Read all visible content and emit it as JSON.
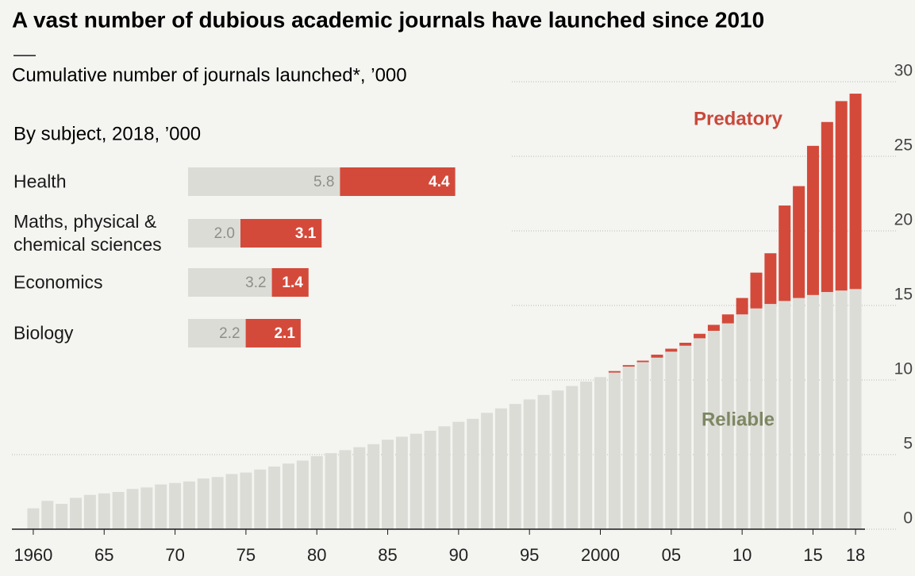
{
  "chart_data": [
    {
      "type": "bar",
      "stacked": true,
      "title": "A vast number of dubious academic journals have launched since 2010",
      "subtitle": "Cumulative number of journals launched*, ’000",
      "x": [
        1960,
        1961,
        1962,
        1963,
        1964,
        1965,
        1966,
        1967,
        1968,
        1969,
        1970,
        1971,
        1972,
        1973,
        1974,
        1975,
        1976,
        1977,
        1978,
        1979,
        1980,
        1981,
        1982,
        1983,
        1984,
        1985,
        1986,
        1987,
        1988,
        1989,
        1990,
        1991,
        1992,
        1993,
        1994,
        1995,
        1996,
        1997,
        1998,
        1999,
        2000,
        2001,
        2002,
        2003,
        2004,
        2005,
        2006,
        2007,
        2008,
        2009,
        2010,
        2011,
        2012,
        2013,
        2014,
        2015,
        2016,
        2017,
        2018
      ],
      "xticks": [
        1960,
        {
          "value": 1965,
          "label": "65"
        },
        {
          "value": 1970,
          "label": "70"
        },
        {
          "value": 1975,
          "label": "75"
        },
        {
          "value": 1980,
          "label": "80"
        },
        {
          "value": 1985,
          "label": "85"
        },
        {
          "value": 1990,
          "label": "90"
        },
        {
          "value": 1995,
          "label": "95"
        },
        2000,
        {
          "value": 2005,
          "label": "05"
        },
        {
          "value": 2010,
          "label": "10"
        },
        {
          "value": 2015,
          "label": "15"
        },
        {
          "value": 2018,
          "label": "18"
        }
      ],
      "ylim": [
        0,
        30
      ],
      "yticks": [
        0,
        5,
        10,
        15,
        20,
        25,
        30
      ],
      "grid": true,
      "series": [
        {
          "name": "Reliable",
          "color": "#dcdcd7",
          "values": [
            1.4,
            1.9,
            1.7,
            2.1,
            2.3,
            2.4,
            2.5,
            2.7,
            2.8,
            3.0,
            3.1,
            3.2,
            3.4,
            3.5,
            3.7,
            3.8,
            4.0,
            4.2,
            4.4,
            4.6,
            4.9,
            5.1,
            5.3,
            5.5,
            5.7,
            6.0,
            6.2,
            6.4,
            6.6,
            6.9,
            7.2,
            7.4,
            7.8,
            8.1,
            8.4,
            8.7,
            9.0,
            9.3,
            9.6,
            9.9,
            10.2,
            10.5,
            10.9,
            11.2,
            11.5,
            11.9,
            12.3,
            12.8,
            13.3,
            13.8,
            14.4,
            14.8,
            15.1,
            15.3,
            15.5,
            15.7,
            15.9,
            16.0,
            16.1
          ]
        },
        {
          "name": "Predatory",
          "color": "#d34a3b",
          "values": [
            0,
            0,
            0,
            0,
            0,
            0,
            0,
            0,
            0,
            0,
            0,
            0,
            0,
            0,
            0,
            0,
            0,
            0,
            0,
            0,
            0,
            0,
            0,
            0,
            0,
            0,
            0,
            0,
            0,
            0,
            0,
            0,
            0,
            0,
            0,
            0,
            0,
            0,
            0,
            0,
            0,
            0.1,
            0.1,
            0.1,
            0.2,
            0.2,
            0.2,
            0.3,
            0.4,
            0.6,
            1.1,
            2.4,
            3.4,
            6.4,
            7.5,
            10.0,
            11.4,
            12.7,
            13.1
          ]
        }
      ]
    },
    {
      "type": "bar",
      "orientation": "horizontal",
      "stacked": true,
      "subtitle": "By subject, 2018, ’000",
      "categories": [
        "Health",
        "Maths, physical & chemical sciences",
        "Economics",
        "Biology"
      ],
      "series": [
        {
          "color": "#dcdcd7",
          "values": [
            5.8,
            2.0,
            3.2,
            2.2
          ],
          "value_labels": [
            "5.8",
            "2.0",
            "3.2",
            "2.2"
          ]
        },
        {
          "color": "#d34a3b",
          "values": [
            4.4,
            3.1,
            1.4,
            2.1
          ],
          "value_labels": [
            "4.4",
            "3.1",
            "1.4",
            "2.1"
          ]
        }
      ]
    }
  ]
}
